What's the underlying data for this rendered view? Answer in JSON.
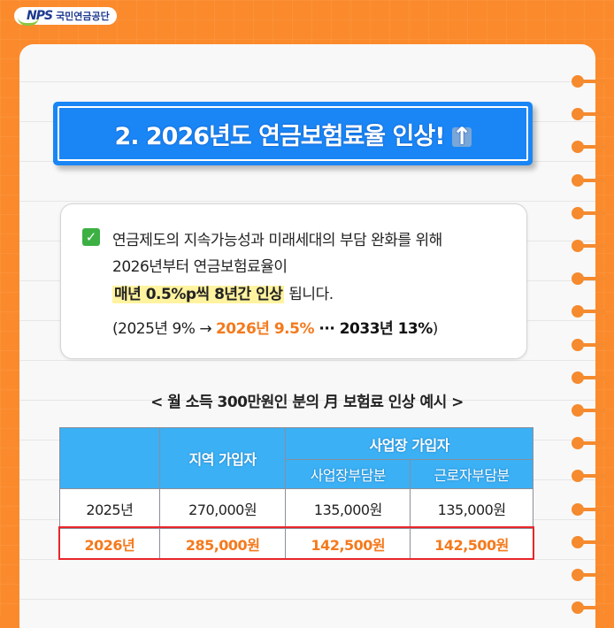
{
  "logo": {
    "brand": "NPS",
    "org": "국민연금공단"
  },
  "title": {
    "text": "2. 2026년도 연금보험료율 인상!",
    "icon": "up-arrow-icon"
  },
  "info": {
    "check_icon": "check-mark-icon",
    "line1": "연금제도의 지속가능성과 미래세대의 부담 완화를 위해",
    "line2": "2026년부터 연금보험료율이",
    "line3_highlight": "매년 0.5%p씩 8년간 인상",
    "line3_rest": " 됩니다.",
    "line4_a": "(2025년 9% → ",
    "line4_b": "2026년 9.5%",
    "line4_c": " ··· 2033년 13%",
    "line4_d": ")"
  },
  "subtitle": "< 월 소득 300만원인 분의 月 보험료 인상 예시 >",
  "table": {
    "headers": {
      "regional": "지역 가입자",
      "workplace": "사업장 가입자",
      "employer": "사업장부담분",
      "employee": "근로자부담분"
    },
    "rows": [
      {
        "year": "2025년",
        "regional": "270,000원",
        "employer": "135,000원",
        "employee": "135,000원"
      },
      {
        "year": "2026년",
        "regional": "285,000원",
        "employer": "142,500원",
        "employee": "142,500원"
      }
    ]
  },
  "colors": {
    "background": "#fb8a2c",
    "title_bg": "#1a86f5",
    "header_bg": "#3bb0f4",
    "accent": "#f47a1d",
    "highlight": "#e8262b"
  }
}
